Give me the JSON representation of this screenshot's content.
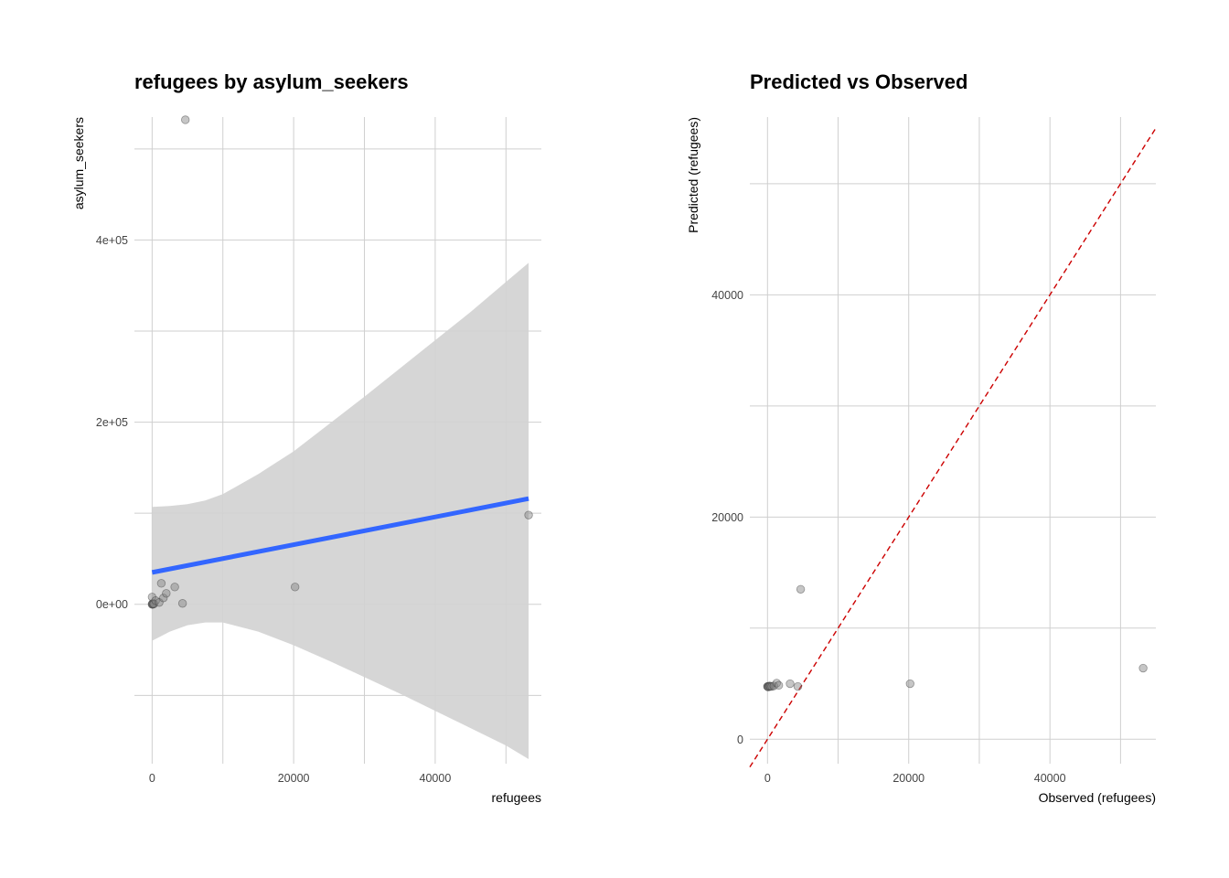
{
  "chart_data": [
    {
      "type": "scatter",
      "title": "refugees by asylum_seekers",
      "xlabel": "refugees",
      "ylabel": "asylum_seekers",
      "xlim": [
        -2500,
        55000
      ],
      "ylim": [
        -175000,
        535000
      ],
      "x_ticks": [
        0,
        20000,
        40000
      ],
      "x_tick_labels": [
        "0",
        "20000",
        "40000"
      ],
      "y_ticks": [
        0,
        200000,
        400000
      ],
      "y_tick_labels": [
        "0e+00",
        "2e+05",
        "4e+05"
      ],
      "x_minor_grid": [
        10000,
        30000,
        50000
      ],
      "y_minor_grid": [
        -100000,
        100000,
        300000,
        500000
      ],
      "grid": true,
      "point_color": "#808080",
      "fit_color": "#3366ff",
      "band_color": "#d3d3d3",
      "points": [
        {
          "x": 0,
          "y": 0
        },
        {
          "x": 30,
          "y": 0
        },
        {
          "x": 80,
          "y": 1000
        },
        {
          "x": 150,
          "y": 200
        },
        {
          "x": 250,
          "y": 500
        },
        {
          "x": 0,
          "y": 8000
        },
        {
          "x": 500,
          "y": 4000
        },
        {
          "x": 1000,
          "y": 2000
        },
        {
          "x": 1300,
          "y": 23000
        },
        {
          "x": 1600,
          "y": 7000
        },
        {
          "x": 2000,
          "y": 12000
        },
        {
          "x": 3200,
          "y": 19000
        },
        {
          "x": 4300,
          "y": 1000
        },
        {
          "x": 4700,
          "y": 532000
        },
        {
          "x": 20200,
          "y": 19000
        },
        {
          "x": 53200,
          "y": 98000
        }
      ],
      "fit_line": {
        "x": [
          0,
          53200
        ],
        "y": [
          35000,
          116000
        ]
      },
      "confidence_band": [
        {
          "x": 0,
          "lower": -40000,
          "upper": 107000
        },
        {
          "x": 2500,
          "lower": -30000,
          "upper": 108000
        },
        {
          "x": 5000,
          "lower": -23000,
          "upper": 110000
        },
        {
          "x": 7500,
          "lower": -20000,
          "upper": 114000
        },
        {
          "x": 10000,
          "lower": -20000,
          "upper": 121000
        },
        {
          "x": 15000,
          "lower": -30000,
          "upper": 143000
        },
        {
          "x": 20000,
          "lower": -45000,
          "upper": 168000
        },
        {
          "x": 25000,
          "lower": -62000,
          "upper": 198000
        },
        {
          "x": 30000,
          "lower": -80000,
          "upper": 228000
        },
        {
          "x": 35000,
          "lower": -98000,
          "upper": 259000
        },
        {
          "x": 40000,
          "lower": -117000,
          "upper": 290000
        },
        {
          "x": 45000,
          "lower": -136000,
          "upper": 321000
        },
        {
          "x": 50000,
          "lower": -155000,
          "upper": 354000
        },
        {
          "x": 53200,
          "lower": -170000,
          "upper": 375000
        }
      ]
    },
    {
      "type": "scatter",
      "title": "Predicted vs Observed",
      "xlabel": "Observed (refugees)",
      "ylabel": "Predicted (refugees)",
      "xlim": [
        -2500,
        55000
      ],
      "ylim": [
        -2200,
        56000
      ],
      "x_ticks": [
        0,
        20000,
        40000
      ],
      "x_tick_labels": [
        "0",
        "20000",
        "40000"
      ],
      "y_ticks": [
        0,
        20000,
        40000
      ],
      "y_tick_labels": [
        "0",
        "20000",
        "40000"
      ],
      "x_minor_grid": [
        10000,
        30000,
        50000
      ],
      "y_minor_grid": [
        10000,
        30000,
        50000
      ],
      "grid": true,
      "point_color": "#808080",
      "reference_line": {
        "slope": 1,
        "intercept": 0,
        "color": "#cc0000",
        "style": "dashed"
      },
      "points": [
        {
          "x": 0,
          "y": 4750
        },
        {
          "x": 50,
          "y": 4750
        },
        {
          "x": 100,
          "y": 4700
        },
        {
          "x": 200,
          "y": 4750
        },
        {
          "x": 300,
          "y": 4800
        },
        {
          "x": 400,
          "y": 4750
        },
        {
          "x": 600,
          "y": 4750
        },
        {
          "x": 900,
          "y": 4800
        },
        {
          "x": 1300,
          "y": 5050
        },
        {
          "x": 1600,
          "y": 4850
        },
        {
          "x": 3200,
          "y": 5000
        },
        {
          "x": 4300,
          "y": 4750
        },
        {
          "x": 4700,
          "y": 13500
        },
        {
          "x": 20200,
          "y": 5000
        },
        {
          "x": 53200,
          "y": 6400
        }
      ]
    }
  ]
}
